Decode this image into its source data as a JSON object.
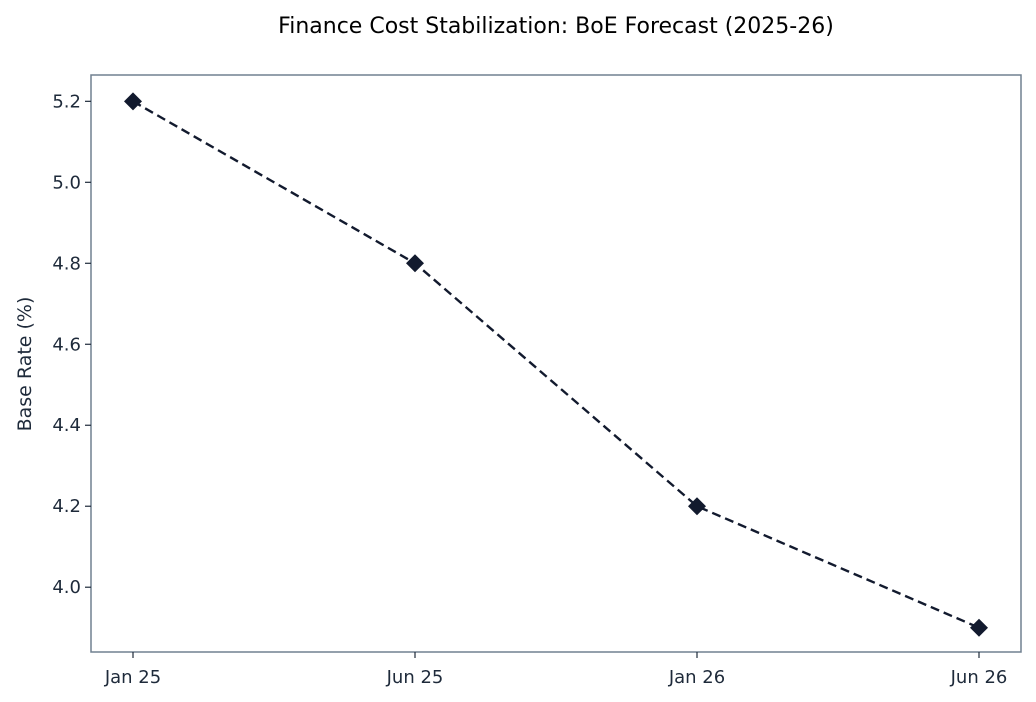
{
  "chart_data": {
    "type": "line",
    "title": "Finance Cost Stabilization: BoE Forecast (2025-26)",
    "xlabel": "",
    "ylabel": "Base Rate (%)",
    "categories": [
      "Jan 25",
      "Jun 25",
      "Jan 26",
      "Jun 26"
    ],
    "series": [
      {
        "values": [
          5.2,
          4.8,
          4.2,
          3.9
        ]
      }
    ],
    "ylim": [
      3.84,
      5.265
    ],
    "yticks": [
      "4.0",
      "4.2",
      "4.4",
      "4.6",
      "4.8",
      "5.0",
      "5.2"
    ],
    "grid": false,
    "legend": "none",
    "line_style": "dashed",
    "marker": "diamond",
    "colors": {
      "line": "#121a2e",
      "frame": "#708090",
      "text": "#1e2a3a"
    }
  }
}
